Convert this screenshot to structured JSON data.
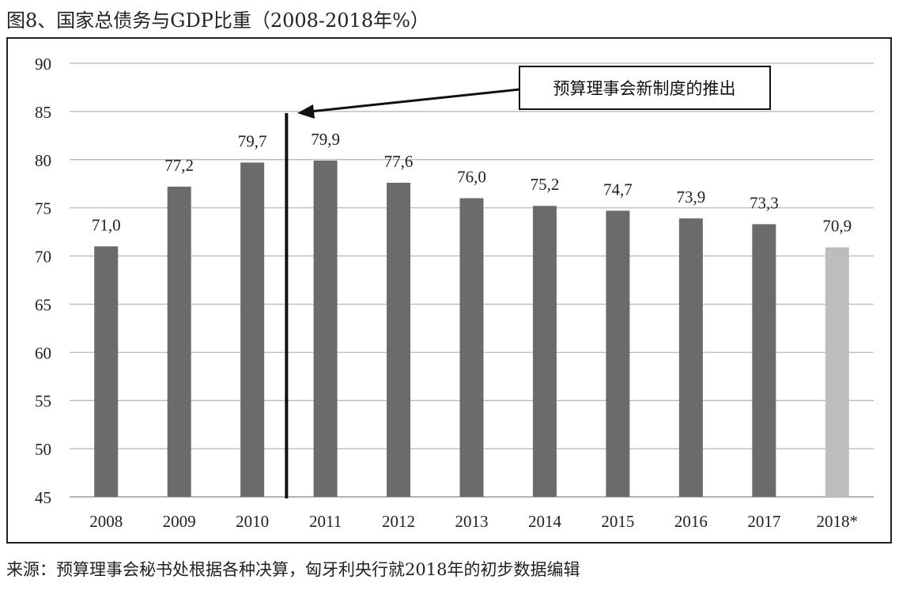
{
  "chart_data": {
    "type": "bar",
    "title": "图8、国家总债务与GDP比重（2008-2018年%）",
    "categories": [
      "2008",
      "2009",
      "2010",
      "2011",
      "2012",
      "2013",
      "2014",
      "2015",
      "2016",
      "2017",
      "2018*"
    ],
    "values": [
      71.0,
      77.2,
      79.7,
      79.9,
      77.6,
      76.0,
      75.2,
      74.7,
      73.9,
      73.3,
      70.9
    ],
    "data_labels": [
      "71,0",
      "77,2",
      "79,7",
      "79,9",
      "77,6",
      "76,0",
      "75,2",
      "74,7",
      "73,9",
      "73,3",
      "70,9"
    ],
    "ylim": [
      45,
      90
    ],
    "yticks": [
      45,
      50,
      55,
      60,
      65,
      70,
      75,
      80,
      85,
      90
    ],
    "grid": true,
    "xlabel": "",
    "ylabel": "",
    "bar_colors": {
      "actual": "#6b6b6b",
      "estimate": "#bdbdbd"
    },
    "annotation": {
      "text": "预算理事会新制度的推出",
      "between": [
        "2010",
        "2011"
      ]
    },
    "source": "来源：预算理事会秘书处根据各种决算，匈牙利央行就2018年的初步数据编辑"
  }
}
